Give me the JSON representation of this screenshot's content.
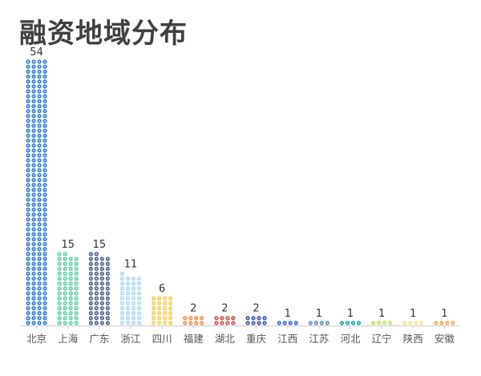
{
  "chart_data": {
    "type": "bar",
    "title": "融资地域分布",
    "xlabel": "",
    "ylabel": "",
    "grid": false,
    "legend": "none",
    "style": "pictorial-dollar-coins",
    "categories": [
      "北京",
      "上海",
      "广东",
      "浙江",
      "四川",
      "福建",
      "湖北",
      "重庆",
      "江西",
      "江苏",
      "河北",
      "辽宁",
      "陕西",
      "安徽"
    ],
    "values": [
      54,
      15,
      15,
      11,
      6,
      2,
      2,
      2,
      1,
      1,
      1,
      1,
      1,
      1
    ],
    "colors": [
      "#2f7bd6",
      "#5fcfa8",
      "#4f5f85",
      "#a9d7f5",
      "#f4cc4d",
      "#ef8f48",
      "#d94a4a",
      "#3d53b0",
      "#2f67c9",
      "#5e8ad1",
      "#18a5bd",
      "#b9e05e",
      "#f5e48a",
      "#f5a64a"
    ]
  }
}
